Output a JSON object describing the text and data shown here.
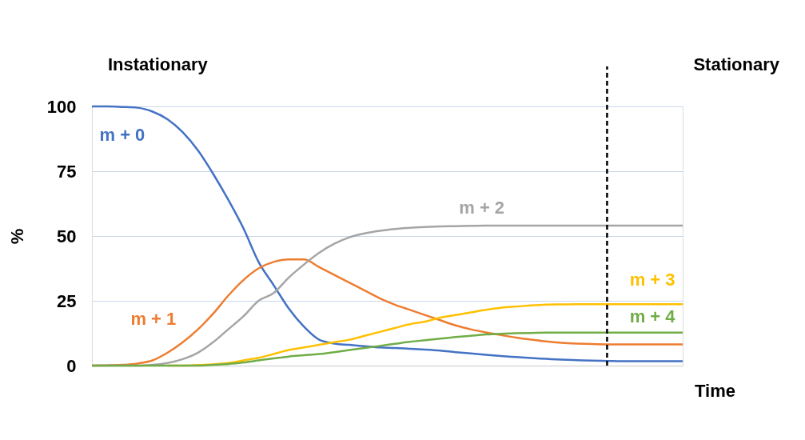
{
  "chart_data": {
    "type": "line",
    "xlabel": "Time",
    "ylabel": "%",
    "categories": [
      null,
      null,
      null,
      null,
      null,
      null,
      null,
      null,
      null,
      null,
      null,
      null,
      null,
      null,
      null,
      null,
      null,
      null,
      null,
      null,
      null,
      null,
      null,
      null,
      null,
      null,
      null,
      null,
      null,
      null,
      null,
      null,
      null,
      null,
      null,
      null,
      null,
      null,
      null,
      null
    ],
    "series": [
      {
        "name": "m + 0",
        "color": "#4472c4",
        "values": [
          100,
          100,
          99.8,
          99.5,
          98,
          95,
          90,
          83,
          74,
          64,
          53,
          40,
          31,
          22,
          15,
          10,
          8.5,
          8,
          7.5,
          7,
          6.8,
          6.5,
          6.2,
          5.8,
          5.2,
          4.7,
          4.2,
          3.7,
          3.3,
          2.9,
          2.6,
          2.3,
          2.1,
          1.9,
          1.8,
          1.7,
          1.7,
          1.7,
          1.7,
          1.7
        ]
      },
      {
        "name": "m + 1",
        "color": "#ed7d31",
        "values": [
          0,
          0.1,
          0.3,
          0.8,
          2,
          5,
          9,
          14,
          20,
          27,
          33,
          37.5,
          40,
          41,
          41,
          38,
          35,
          32,
          29,
          26,
          23.5,
          21.5,
          19.5,
          17.5,
          15.5,
          14,
          12.8,
          11.8,
          10.8,
          10,
          9.3,
          8.8,
          8.5,
          8.3,
          8.2,
          8.2,
          8.2,
          8.2,
          8.2,
          8.2
        ]
      },
      {
        "name": "m + 2",
        "color": "#a5a5a5",
        "values": [
          0,
          0,
          0,
          0,
          0.3,
          1,
          2.5,
          5,
          9,
          14,
          19,
          25,
          28,
          34,
          39,
          43.5,
          47,
          49.5,
          51,
          52,
          52.7,
          53.2,
          53.5,
          53.7,
          53.8,
          53.9,
          54,
          54,
          54,
          54,
          54,
          54,
          54,
          54,
          54,
          54,
          54,
          54,
          54,
          54
        ]
      },
      {
        "name": "m + 3",
        "color": "#ffc000",
        "values": [
          null,
          null,
          null,
          null,
          null,
          0,
          0,
          0.2,
          0.5,
          1,
          2,
          3,
          4.5,
          6,
          7,
          8,
          9,
          10,
          11.5,
          13,
          14.5,
          16,
          17,
          18.5,
          19.5,
          20.5,
          21.5,
          22.3,
          22.8,
          23.2,
          23.5,
          23.6,
          23.7,
          23.7,
          23.7,
          23.7,
          23.7,
          23.7,
          23.7,
          23.7
        ]
      },
      {
        "name": "m + 4",
        "color": "#70ad47",
        "values": [
          0,
          0,
          0,
          0,
          0,
          0,
          0,
          0,
          0.3,
          0.6,
          1.2,
          2,
          2.8,
          3.5,
          4,
          4.5,
          5.2,
          6,
          6.8,
          7.6,
          8.4,
          9.2,
          9.8,
          10.4,
          11,
          11.5,
          12,
          12.3,
          12.5,
          12.6,
          12.7,
          12.7,
          12.7,
          12.7,
          12.7,
          12.7,
          12.7,
          12.7,
          12.7,
          12.7
        ]
      }
    ],
    "ylim": [
      0,
      100
    ],
    "yticks": [
      0,
      25,
      50,
      75,
      100
    ],
    "grid": "y",
    "tick_labels": "y",
    "line_style": "solid",
    "marker": "none",
    "annotations": [
      "Instationary",
      "Stationary"
    ]
  }
}
